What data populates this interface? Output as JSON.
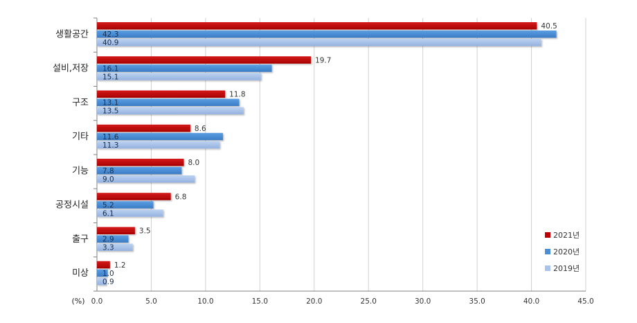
{
  "chart_data": {
    "type": "bar",
    "orientation": "horizontal",
    "categories": [
      "생활공간",
      "설비,저장",
      "구조",
      "기타",
      "기능",
      "공정시설",
      "출구",
      "미상"
    ],
    "series": [
      {
        "name": "2021년",
        "color": "#c00000",
        "values": [
          40.5,
          19.7,
          11.8,
          8.6,
          8.0,
          6.8,
          3.5,
          1.2
        ]
      },
      {
        "name": "2020년",
        "color": "#4a8fd6",
        "values": [
          42.3,
          16.1,
          13.1,
          11.6,
          7.8,
          5.2,
          2.9,
          1.0
        ]
      },
      {
        "name": "2019년",
        "color": "#a9c3ea",
        "values": [
          40.9,
          15.1,
          13.5,
          11.3,
          9.0,
          6.1,
          3.3,
          0.9
        ]
      }
    ],
    "xunit": "(%)",
    "xlim": [
      0,
      45
    ],
    "xticks": [
      "0.0",
      "5.0",
      "10.0",
      "15.0",
      "20.0",
      "25.0",
      "30.0",
      "35.0",
      "40.0",
      "45.0"
    ],
    "grid": true,
    "legend_position": "bottom-right"
  }
}
